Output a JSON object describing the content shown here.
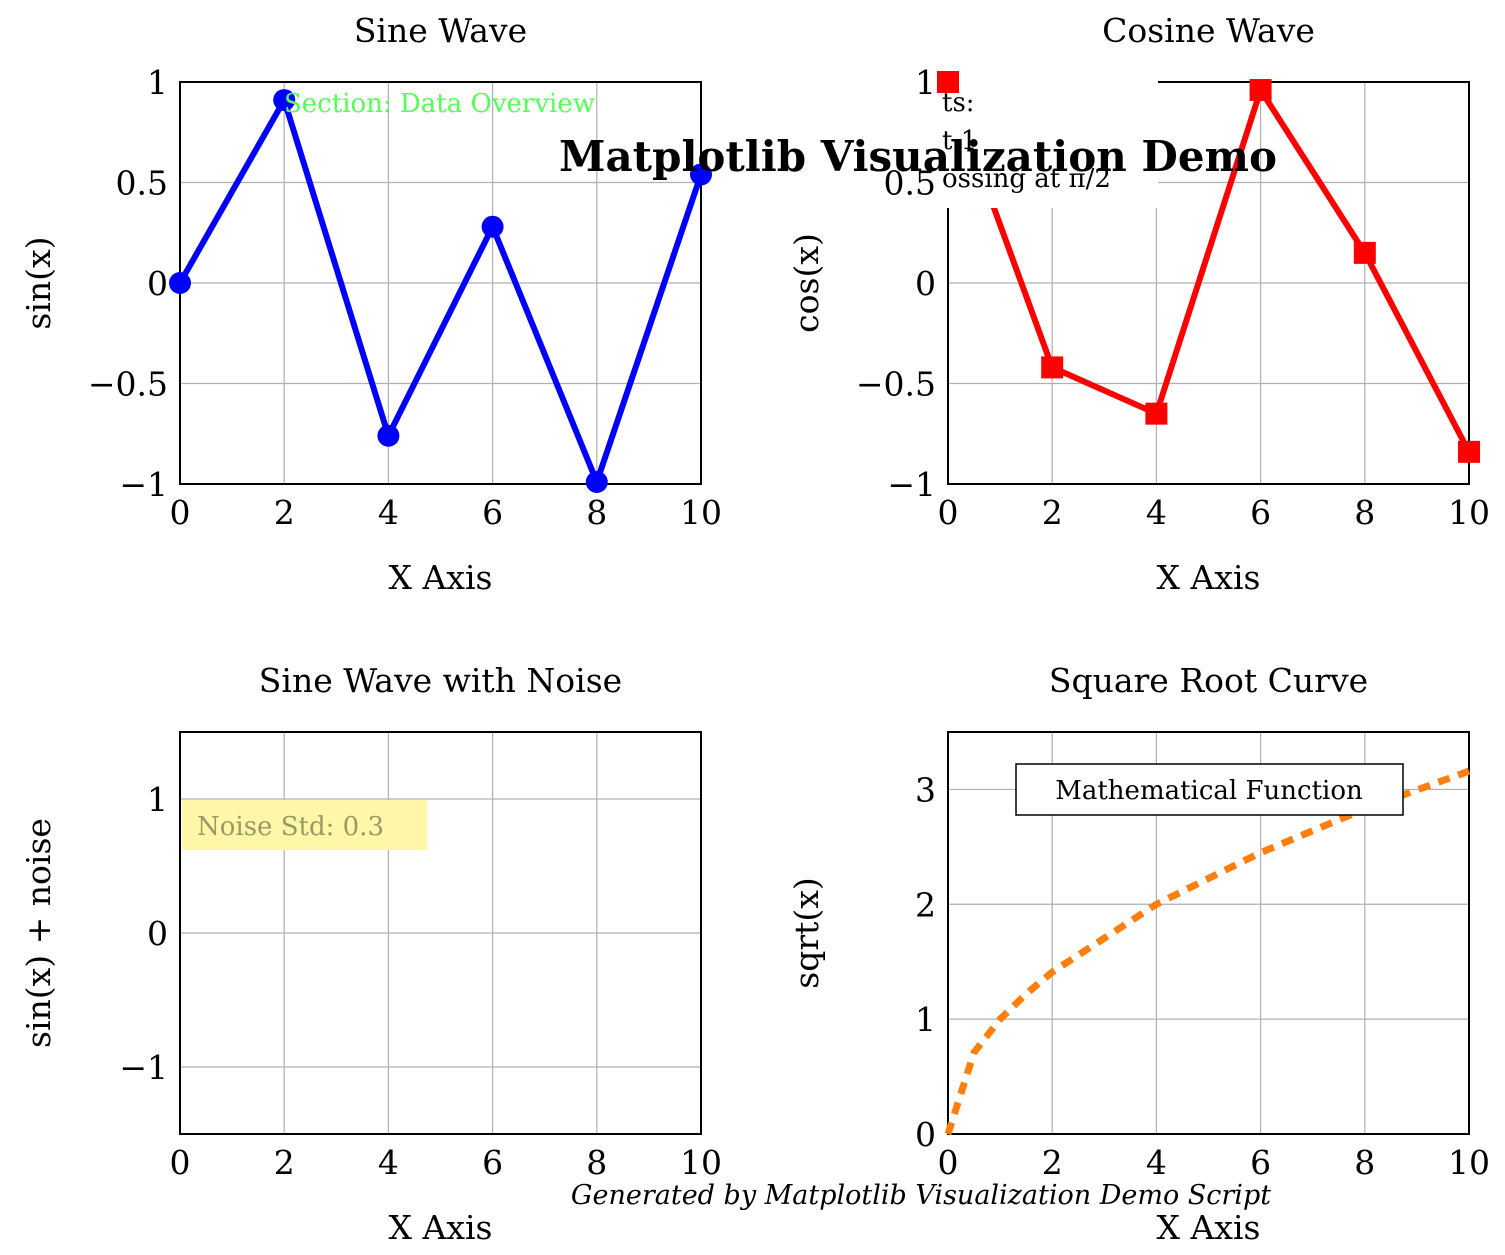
{
  "figure": {
    "suptitle": "Matplotlib Visualization Demo",
    "footer": "Generated by Matplotlib Visualization Demo Script"
  },
  "chart_data": [
    {
      "type": "line",
      "title": "Sine Wave",
      "xlabel": "X Axis",
      "ylabel": "sin(x)",
      "xlim": [
        0,
        10
      ],
      "ylim": [
        -1,
        1
      ],
      "xticks": [
        "0",
        "2",
        "4",
        "6",
        "8",
        "10"
      ],
      "yticks": [
        "−1",
        "−0.5",
        "0",
        "0.5",
        "1"
      ],
      "grid": true,
      "annotations": [
        {
          "text": "Section: Data Overview",
          "color": "#55ff55"
        }
      ],
      "series": [
        {
          "color": "#0000ff",
          "marker": "circle",
          "line": "solid",
          "x": [
            0,
            2,
            4,
            6,
            8,
            10
          ],
          "y": [
            0,
            0.91,
            -0.76,
            0.28,
            -0.99,
            0.54
          ]
        }
      ]
    },
    {
      "type": "line",
      "title": "Cosine Wave",
      "xlabel": "X Axis",
      "ylabel": "cos(x)",
      "xlim": [
        0,
        10
      ],
      "ylim": [
        -1,
        1
      ],
      "xticks": [
        "0",
        "2",
        "4",
        "6",
        "8",
        "10"
      ],
      "yticks": [
        "−1",
        "−0.5",
        "0",
        "0.5",
        "1"
      ],
      "grid": true,
      "legend": {
        "position": "top-left",
        "lines": [
          "ts:",
          "t 1",
          "ossing at π/2"
        ]
      },
      "series": [
        {
          "color": "#ff0000",
          "marker": "square",
          "line": "solid",
          "x": [
            0,
            2,
            4,
            6,
            8,
            10
          ],
          "y": [
            1,
            -0.42,
            -0.65,
            0.96,
            0.15,
            -0.84
          ]
        }
      ]
    },
    {
      "type": "line",
      "title": "Sine Wave with Noise",
      "xlabel": "X Axis",
      "ylabel": "sin(x) + noise",
      "xlim": [
        0,
        10
      ],
      "ylim": [
        -1.5,
        1.5
      ],
      "xticks": [
        "0",
        "2",
        "4",
        "6",
        "8",
        "10"
      ],
      "yticks": [
        "−1",
        "0",
        "1"
      ],
      "grid": true,
      "annotations": [
        {
          "text": "Noise Std: 0.3",
          "color": "#999966",
          "background": "#fff7a8"
        }
      ],
      "series": []
    },
    {
      "type": "line",
      "title": "Square Root Curve",
      "xlabel": "X Axis",
      "ylabel": "sqrt(x)",
      "xlim": [
        0,
        10
      ],
      "ylim": [
        0,
        3.5
      ],
      "xticks": [
        "0",
        "2",
        "4",
        "6",
        "8",
        "10"
      ],
      "yticks": [
        "0",
        "1",
        "2",
        "3"
      ],
      "grid": true,
      "annotations": [
        {
          "text": "Mathematical Function",
          "boxed": true
        }
      ],
      "series": [
        {
          "color": "#ff7f0e",
          "marker": "none",
          "line": "dashed",
          "x": [
            0,
            0.5,
            1,
            1.5,
            2,
            4,
            6,
            8,
            10
          ],
          "y": [
            0,
            0.71,
            1,
            1.22,
            1.41,
            2,
            2.45,
            2.83,
            3.16
          ]
        }
      ]
    }
  ]
}
